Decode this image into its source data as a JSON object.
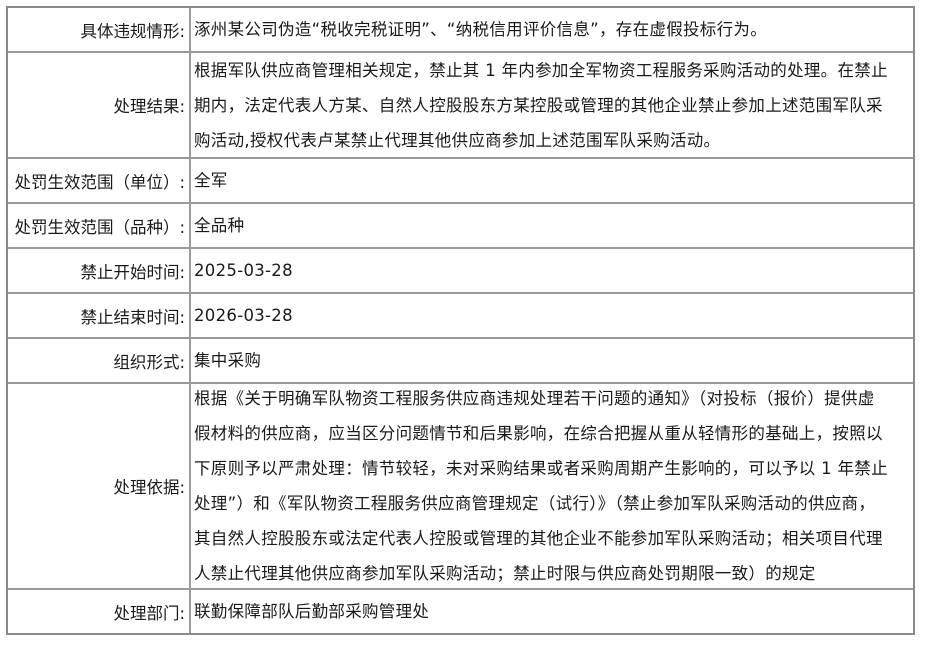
{
  "rows": [
    {
      "label": "具体违规情形:",
      "lines": [
        "涿州某公司伪造“税收完税证明”、“纳税信用评价信息”，存在虚假投标行为。"
      ]
    },
    {
      "label": "处理结果:",
      "lines": [
        "根据军队供应商管理相关规定，禁止其 1 年内参加全军物资工程服务采购活动的处理。在禁止",
        "期内，法定代表人方某、自然人控股股东方某控股或管理的其他企业禁止参加上述范围军队采",
        "购活动,授权代表卢某禁止代理其他供应商参加上述范围军队采购活动。"
      ]
    },
    {
      "label": "处罚生效范围（单位）:",
      "lines": [
        "全军"
      ]
    },
    {
      "label": "处罚生效范围（品种）:",
      "lines": [
        "全品种"
      ]
    },
    {
      "label": "禁止开始时间:",
      "lines": [
        "2025-03-28"
      ]
    },
    {
      "label": "禁止结束时间:",
      "lines": [
        "2026-03-28"
      ]
    },
    {
      "label": "组织形式:",
      "lines": [
        "集中采购"
      ]
    },
    {
      "label": "处理依据:",
      "lines": [
        "根据《关于明确军队物资工程服务供应商违规处理若干问题的通知》（对投标（报价）提供虚",
        "假材料的供应商，应当区分问题情节和后果影响，在综合把握从重从轻情形的基础上，按照以",
        "下原则予以严肃处理：情节较轻，未对采购结果或者采购周期产生影响的，可以予以 1 年禁止",
        "处理”）和《军队物资工程服务供应商管理规定（试行）》（禁止参加军队采购活动的供应商，",
        "其自然人控股股东或法定代表人控股或管理的其他企业不能参加军队采购活动；相关项目代理",
        "人禁止代理其他供应商参加军队采购活动；禁止时限与供应商处罚期限一致）的规定"
      ]
    },
    {
      "label": "处理部门:",
      "lines": [
        "联勤保障部队后勤部采购管理处"
      ]
    }
  ]
}
